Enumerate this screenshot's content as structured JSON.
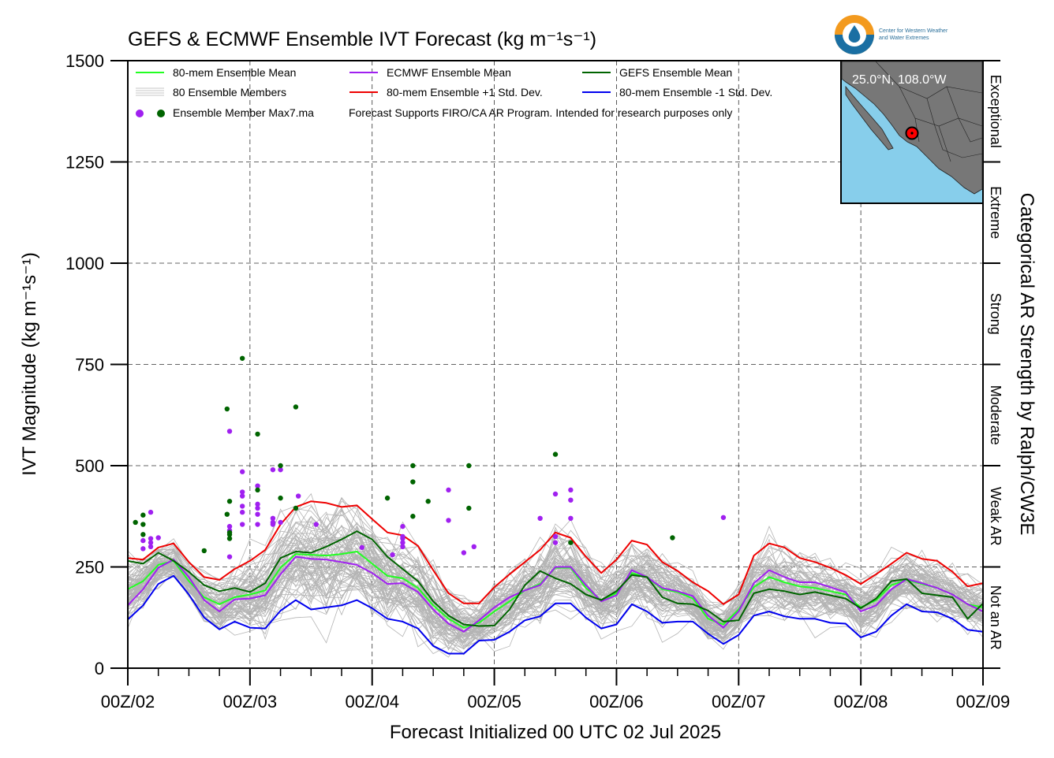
{
  "chart_data": {
    "type": "line",
    "title": "GEFS & ECMWF Ensemble IVT Forecast (kg m⁻¹s⁻¹)",
    "xlabel": "Forecast Initialized 00 UTC 02 Jul 2025",
    "ylabel": "IVT Magnitude (kg m⁻¹s⁻¹)",
    "right_label": "Categorical AR Strength by Ralph/CW3E",
    "ylim": [
      0,
      1500
    ],
    "yticks": [
      0,
      250,
      500,
      750,
      1000,
      1250,
      1500
    ],
    "ytick_labels": [
      "0",
      "250",
      "500",
      "750",
      "1000",
      "1250",
      "1500"
    ],
    "xlim": [
      0,
      168
    ],
    "xticks": [
      0,
      24,
      48,
      72,
      96,
      120,
      144,
      168
    ],
    "xtick_labels": [
      "00Z/02",
      "00Z/03",
      "00Z/04",
      "00Z/05",
      "00Z/06",
      "00Z/07",
      "00Z/08",
      "00Z/09"
    ],
    "grid": true,
    "categories_right": [
      {
        "label": "Not an AR",
        "range": [
          0,
          250
        ]
      },
      {
        "label": "Weak AR",
        "range": [
          250,
          500
        ]
      },
      {
        "label": "Moderate",
        "range": [
          500,
          750
        ]
      },
      {
        "label": "Strong",
        "range": [
          750,
          1000
        ]
      },
      {
        "label": "Extreme",
        "range": [
          1000,
          1250
        ]
      },
      {
        "label": "Exceptional",
        "range": [
          1250,
          1500
        ]
      }
    ],
    "legend": {
      "placement": "top-left",
      "entries": [
        {
          "label": "80-mem Ensemble Mean",
          "color": "#22ff22",
          "kind": "line"
        },
        {
          "label": "ECMWF Ensemble Mean",
          "color": "#a020f0",
          "kind": "line"
        },
        {
          "label": "GEFS Ensemble Mean",
          "color": "#006400",
          "kind": "line"
        },
        {
          "label": "80 Ensemble Members",
          "color": "#b4b4b4",
          "kind": "members"
        },
        {
          "label": "80-mem Ensemble +1 Std. Dev.",
          "color": "#ee0000",
          "kind": "line"
        },
        {
          "label": "80-mem Ensemble -1 Std. Dev.",
          "color": "#0000ee",
          "kind": "line"
        },
        {
          "label": "Ensemble Member Max7.ma",
          "color": "#a020f0",
          "color2": "#006400",
          "kind": "dots"
        }
      ],
      "note": "Forecast Supports FIRO/CA AR Program. Intended for research purposes only"
    },
    "inset": {
      "label": "25.0°N, 108.0°W",
      "marker": "red-dot"
    },
    "logo": {
      "line1": "Center for Western Weather",
      "line2": "and Water Extremes"
    },
    "series": [
      {
        "name": "80-mem Ensemble Mean",
        "color": "#22ff22",
        "x": [
          0,
          3,
          6,
          9,
          12,
          15,
          18,
          21,
          24,
          27,
          30,
          33,
          36,
          39,
          42,
          45,
          48,
          51,
          54,
          57,
          60,
          63,
          66,
          69,
          72,
          75,
          78,
          81,
          84,
          87,
          90,
          93,
          96,
          99,
          102,
          105,
          108,
          111,
          114,
          117,
          120,
          123,
          126,
          129,
          132,
          135,
          138,
          141,
          144,
          147,
          150,
          153,
          156,
          159,
          162,
          165,
          168
        ],
        "y": [
          195,
          215,
          255,
          265,
          215,
          175,
          158,
          175,
          182,
          192,
          248,
          282,
          280,
          278,
          282,
          288,
          258,
          228,
          222,
          198,
          155,
          122,
          100,
          112,
          140,
          165,
          192,
          208,
          248,
          248,
          198,
          168,
          185,
          235,
          225,
          195,
          188,
          172,
          122,
          108,
          145,
          200,
          225,
          212,
          202,
          198,
          190,
          182,
          150,
          168,
          205,
          218,
          208,
          198,
          182,
          158,
          150
        ]
      },
      {
        "name": "ECMWF Ensemble Mean",
        "color": "#a020f0",
        "x": [
          0,
          3,
          6,
          9,
          12,
          15,
          18,
          21,
          24,
          27,
          30,
          33,
          36,
          39,
          42,
          45,
          48,
          51,
          54,
          57,
          60,
          63,
          66,
          69,
          72,
          75,
          78,
          81,
          84,
          87,
          90,
          93,
          96,
          99,
          102,
          105,
          108,
          111,
          114,
          117,
          120,
          123,
          126,
          129,
          132,
          135,
          138,
          141,
          144,
          147,
          150,
          153,
          156,
          159,
          162,
          165,
          168
        ],
        "y": [
          155,
          195,
          248,
          268,
          225,
          168,
          140,
          170,
          172,
          180,
          232,
          275,
          270,
          268,
          262,
          255,
          235,
          208,
          210,
          188,
          145,
          110,
          90,
          118,
          150,
          175,
          192,
          205,
          250,
          250,
          205,
          165,
          180,
          242,
          225,
          198,
          190,
          178,
          130,
          100,
          140,
          210,
          242,
          225,
          212,
          212,
          200,
          188,
          140,
          155,
          195,
          220,
          210,
          198,
          182,
          158,
          140
        ]
      },
      {
        "name": "GEFS Ensemble Mean",
        "color": "#006400",
        "x": [
          0,
          3,
          6,
          9,
          12,
          15,
          18,
          21,
          24,
          27,
          30,
          33,
          36,
          39,
          42,
          45,
          48,
          51,
          54,
          57,
          60,
          63,
          66,
          69,
          72,
          75,
          78,
          81,
          84,
          87,
          90,
          93,
          96,
          99,
          102,
          105,
          108,
          111,
          114,
          117,
          120,
          123,
          126,
          129,
          132,
          135,
          138,
          141,
          144,
          147,
          150,
          153,
          156,
          159,
          162,
          165,
          168
        ],
        "y": [
          265,
          258,
          285,
          265,
          238,
          205,
          190,
          198,
          188,
          210,
          272,
          288,
          285,
          300,
          318,
          338,
          318,
          275,
          245,
          215,
          165,
          130,
          108,
          104,
          105,
          145,
          205,
          240,
          222,
          208,
          182,
          168,
          190,
          230,
          225,
          175,
          160,
          158,
          142,
          115,
          118,
          185,
          195,
          190,
          182,
          188,
          180,
          172,
          148,
          172,
          215,
          220,
          185,
          180,
          175,
          122,
          160
        ]
      },
      {
        "name": "80-mem Ensemble +1 Std. Dev.",
        "color": "#ee0000",
        "x": [
          0,
          3,
          6,
          9,
          12,
          15,
          18,
          21,
          24,
          27,
          30,
          33,
          36,
          39,
          42,
          45,
          48,
          51,
          54,
          57,
          60,
          63,
          66,
          69,
          72,
          75,
          78,
          81,
          84,
          87,
          90,
          93,
          96,
          99,
          102,
          105,
          108,
          111,
          114,
          117,
          120,
          123,
          126,
          129,
          132,
          135,
          138,
          141,
          144,
          147,
          150,
          153,
          156,
          159,
          162,
          165,
          168
        ],
        "y": [
          272,
          268,
          298,
          308,
          262,
          225,
          218,
          245,
          265,
          292,
          355,
          398,
          412,
          408,
          398,
          402,
          368,
          335,
          328,
          302,
          242,
          185,
          160,
          160,
          200,
          232,
          262,
          292,
          335,
          322,
          275,
          235,
          268,
          315,
          305,
          262,
          240,
          212,
          190,
          158,
          182,
          278,
          308,
          298,
          272,
          262,
          248,
          230,
          208,
          232,
          258,
          285,
          270,
          265,
          238,
          202,
          210
        ]
      },
      {
        "name": "80-mem Ensemble -1 Std. Dev.",
        "color": "#0000ee",
        "x": [
          0,
          3,
          6,
          9,
          12,
          15,
          18,
          21,
          24,
          27,
          30,
          33,
          36,
          39,
          42,
          45,
          48,
          51,
          54,
          57,
          60,
          63,
          66,
          69,
          72,
          75,
          78,
          81,
          84,
          87,
          90,
          93,
          96,
          99,
          102,
          105,
          108,
          111,
          114,
          117,
          120,
          123,
          126,
          129,
          132,
          135,
          138,
          141,
          144,
          147,
          150,
          153,
          156,
          159,
          162,
          165,
          168
        ],
        "y": [
          120,
          155,
          208,
          228,
          182,
          125,
          96,
          115,
          100,
          98,
          142,
          168,
          145,
          150,
          155,
          168,
          148,
          122,
          115,
          98,
          55,
          36,
          36,
          68,
          70,
          90,
          118,
          128,
          160,
          160,
          125,
          98,
          108,
          158,
          140,
          112,
          115,
          115,
          85,
          60,
          82,
          130,
          140,
          128,
          122,
          122,
          112,
          110,
          76,
          90,
          130,
          158,
          140,
          138,
          122,
          95,
          90
        ]
      }
    ],
    "max_points_ecmwf": [
      {
        "x": 3,
        "y": 295
      },
      {
        "x": 3,
        "y": 315
      },
      {
        "x": 4.5,
        "y": 300
      },
      {
        "x": 4.5,
        "y": 310
      },
      {
        "x": 4.5,
        "y": 320
      },
      {
        "x": 4.5,
        "y": 385
      },
      {
        "x": 6,
        "y": 322
      },
      {
        "x": 20,
        "y": 275
      },
      {
        "x": 20,
        "y": 340
      },
      {
        "x": 20,
        "y": 350
      },
      {
        "x": 20,
        "y": 585
      },
      {
        "x": 22.5,
        "y": 355
      },
      {
        "x": 22.5,
        "y": 385
      },
      {
        "x": 22.5,
        "y": 400
      },
      {
        "x": 22.5,
        "y": 425
      },
      {
        "x": 22.5,
        "y": 435
      },
      {
        "x": 22.5,
        "y": 485
      },
      {
        "x": 25.5,
        "y": 355
      },
      {
        "x": 25.5,
        "y": 380
      },
      {
        "x": 25.5,
        "y": 395
      },
      {
        "x": 25.5,
        "y": 405
      },
      {
        "x": 25.5,
        "y": 450
      },
      {
        "x": 28.5,
        "y": 355
      },
      {
        "x": 28.5,
        "y": 360
      },
      {
        "x": 28.5,
        "y": 370
      },
      {
        "x": 28.5,
        "y": 490
      },
      {
        "x": 30,
        "y": 360
      },
      {
        "x": 30,
        "y": 490
      },
      {
        "x": 33.5,
        "y": 425
      },
      {
        "x": 37,
        "y": 355
      },
      {
        "x": 46,
        "y": 298
      },
      {
        "x": 52,
        "y": 280
      },
      {
        "x": 54,
        "y": 300
      },
      {
        "x": 54,
        "y": 310
      },
      {
        "x": 54,
        "y": 320
      },
      {
        "x": 54,
        "y": 325
      },
      {
        "x": 54,
        "y": 350
      },
      {
        "x": 63,
        "y": 365
      },
      {
        "x": 63,
        "y": 440
      },
      {
        "x": 66,
        "y": 285
      },
      {
        "x": 68,
        "y": 300
      },
      {
        "x": 81,
        "y": 370
      },
      {
        "x": 84,
        "y": 310
      },
      {
        "x": 84,
        "y": 325
      },
      {
        "x": 84,
        "y": 430
      },
      {
        "x": 87,
        "y": 370
      },
      {
        "x": 87,
        "y": 415
      },
      {
        "x": 87,
        "y": 440
      },
      {
        "x": 117,
        "y": 372
      }
    ],
    "max_points_gefs": [
      {
        "x": 1.5,
        "y": 360
      },
      {
        "x": 3,
        "y": 330
      },
      {
        "x": 3,
        "y": 355
      },
      {
        "x": 3,
        "y": 378
      },
      {
        "x": 15,
        "y": 290
      },
      {
        "x": 19.5,
        "y": 380
      },
      {
        "x": 19.5,
        "y": 640
      },
      {
        "x": 20,
        "y": 320
      },
      {
        "x": 20,
        "y": 330
      },
      {
        "x": 20,
        "y": 335
      },
      {
        "x": 20,
        "y": 412
      },
      {
        "x": 22.5,
        "y": 765
      },
      {
        "x": 25.5,
        "y": 440
      },
      {
        "x": 25.5,
        "y": 578
      },
      {
        "x": 30,
        "y": 420
      },
      {
        "x": 30,
        "y": 500
      },
      {
        "x": 33,
        "y": 395
      },
      {
        "x": 33,
        "y": 645
      },
      {
        "x": 51,
        "y": 420
      },
      {
        "x": 56,
        "y": 375
      },
      {
        "x": 56,
        "y": 460
      },
      {
        "x": 56,
        "y": 500
      },
      {
        "x": 59,
        "y": 412
      },
      {
        "x": 67,
        "y": 395
      },
      {
        "x": 67,
        "y": 500
      },
      {
        "x": 84,
        "y": 528
      },
      {
        "x": 87,
        "y": 310
      },
      {
        "x": 107,
        "y": 322
      }
    ]
  }
}
